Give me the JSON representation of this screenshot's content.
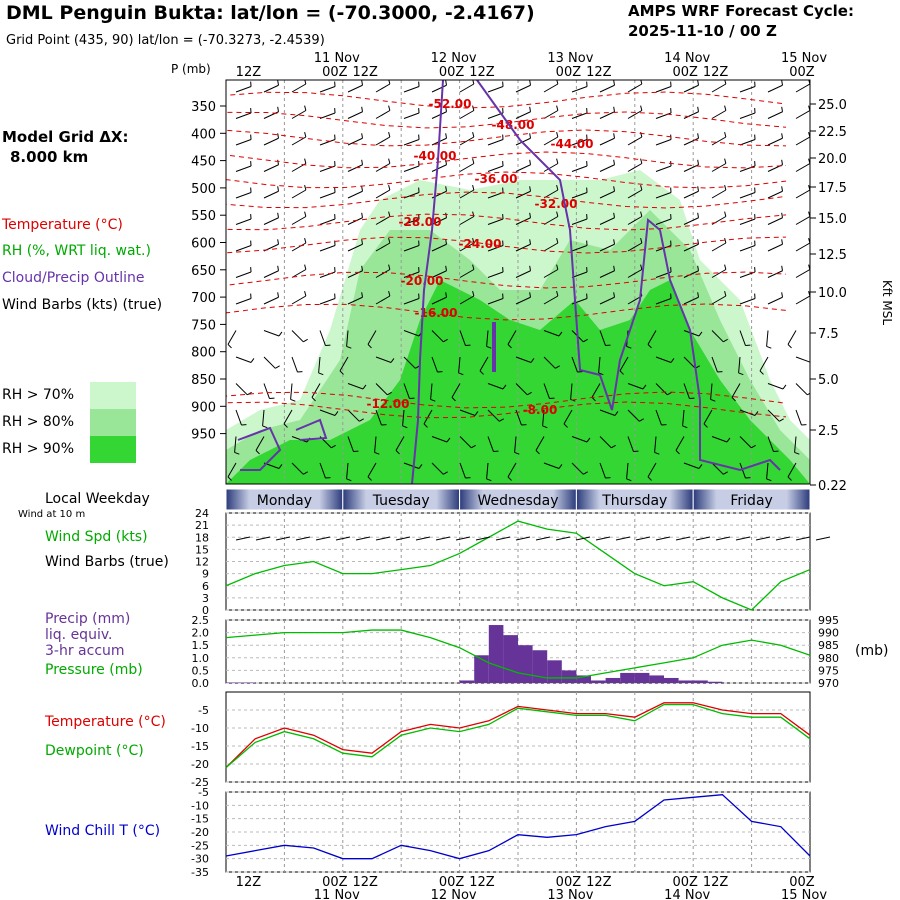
{
  "header": {
    "title": "DML Penguin Bukta:  lat/lon = (-70.3000, -2.4167)",
    "subtitle": "Grid Point (435, 90) lat/lon = (-70.3273, -2.4539)",
    "cycle_line1": "AMPS WRF Forecast Cycle:",
    "cycle_line2": "2025-11-10 / 00  Z"
  },
  "left_panel": {
    "grid_label": "Model Grid ΔX:",
    "grid_value": "8.000 km",
    "legend_temperature": "Temperature (°C)",
    "legend_rh": "RH (%, WRT liq. wat.)",
    "legend_cloud": "Cloud/Precip Outline",
    "legend_wind": "Wind Barbs (kts) (true)",
    "rh70": "RH > 70%",
    "rh80": "RH > 80%",
    "rh90": "RH > 90%",
    "p_unit": "P (mb)",
    "kft": "Kft MSL",
    "local_weekday": "Local Weekday",
    "wind_at": "Wind at 10 m",
    "wspd_label": "Wind Spd (kts)",
    "wbarb_label": "Wind Barbs (true)",
    "precip_label1": "Precip (mm)",
    "precip_label2": "liq. equiv.",
    "precip_label3": "3-hr accum",
    "pressure_label": "Pressure (mb)",
    "mb_label": "(mb)",
    "temp_label": "Temperature (°C)",
    "dew_label": "Dewpoint (°C)",
    "chill_label": "Wind Chill T (°C)"
  },
  "colors": {
    "rh70": "#ccf7cc",
    "rh80": "#99e699",
    "rh90": "#33d633",
    "temperature": "#dd0000",
    "dewpoint": "#00bb00",
    "cloud": "#6633aa",
    "wind_chill": "#0000cc",
    "precip": "#663399",
    "day_bar": "#7d8bbd"
  },
  "time_axis": {
    "top_dates": [
      "11 Nov",
      "12 Nov",
      "13 Nov",
      "14 Nov",
      "15 Nov"
    ],
    "hour_labels": [
      "12Z",
      "00Z",
      "12Z",
      "00Z",
      "12Z",
      "00Z",
      "12Z",
      "00Z",
      "12Z",
      "00Z"
    ],
    "bottom_dates": [
      "11 Nov",
      "12 Nov",
      "13 Nov",
      "14 Nov",
      "15 Nov"
    ],
    "days": [
      "Monday",
      "Tuesday",
      "Wednesday",
      "Thursday",
      "Friday"
    ]
  },
  "chart_data": [
    {
      "type": "heatmap",
      "title": "Time-height cross section",
      "ylabel": "P (mb)",
      "y2label": "Kft MSL",
      "pressure_ticks": [
        "350",
        "400",
        "450",
        "500",
        "550",
        "600",
        "650",
        "700",
        "750",
        "800",
        "850",
        "900",
        "950"
      ],
      "height_ticks": [
        "25.0",
        "22.5",
        "20.0",
        "17.5",
        "15.0",
        "12.5",
        "10.0",
        "7.5",
        "5.0",
        "2.5",
        "0.22"
      ],
      "temperature_contour_labels": [
        "-52.00",
        "-48.00",
        "-44.00",
        "-40.00",
        "-36.00",
        "-32.00",
        "-28.00",
        "-24.00",
        "-20.00",
        "-16.00",
        "-12.00",
        "-8.00"
      ]
    },
    {
      "type": "line",
      "title": "Wind Spd (kts)",
      "y_ticks": [
        "0",
        "3",
        "6",
        "9",
        "12",
        "15",
        "18",
        "21",
        "24"
      ],
      "ylim": [
        0,
        24
      ],
      "x_hours": [
        0,
        6,
        12,
        18,
        24,
        30,
        36,
        42,
        48,
        54,
        60,
        66,
        72,
        78,
        84,
        90,
        96,
        102,
        108,
        114,
        120
      ],
      "series": [
        {
          "name": "Wind Spd (kts)",
          "values": [
            6,
            9,
            11,
            12,
            9,
            9,
            10,
            11,
            14,
            18,
            22,
            20,
            19,
            14,
            9,
            6,
            7,
            3,
            0,
            7,
            10
          ]
        }
      ]
    },
    {
      "type": "bar",
      "title": "Precip (mm) / Pressure (mb)",
      "y_ticks": [
        "0.0",
        "0.5",
        "1.0",
        "1.5",
        "2.0",
        "2.5"
      ],
      "y2_ticks": [
        "970",
        "975",
        "980",
        "985",
        "990",
        "995"
      ],
      "ylim": [
        0,
        2.5
      ],
      "y2lim": [
        970,
        995
      ],
      "bar_hours": [
        3,
        6,
        51,
        54,
        57,
        60,
        63,
        66,
        69,
        72,
        75,
        78,
        81,
        84,
        87,
        90,
        93,
        96,
        99,
        102
      ],
      "precip_values": [
        0.02,
        0.02,
        0.1,
        1.1,
        2.3,
        1.9,
        1.5,
        1.3,
        0.9,
        0.5,
        0.3,
        0.1,
        0.2,
        0.4,
        0.4,
        0.3,
        0.2,
        0.1,
        0.1,
        0.05
      ],
      "pressure_hours": [
        0,
        6,
        12,
        18,
        24,
        30,
        36,
        42,
        48,
        54,
        60,
        66,
        72,
        78,
        84,
        90,
        96,
        102,
        108,
        114,
        120
      ],
      "pressure_values": [
        988,
        989,
        990,
        990,
        990,
        991,
        991,
        988,
        984,
        978,
        974,
        972,
        972,
        974,
        976,
        978,
        980,
        985,
        987,
        985,
        981
      ]
    },
    {
      "type": "line",
      "title": "Temperature / Dewpoint (°C)",
      "y_ticks": [
        "-25",
        "-20",
        "-15",
        "-10",
        "-5"
      ],
      "ylim": [
        -25,
        0
      ],
      "x_hours": [
        0,
        6,
        12,
        18,
        24,
        30,
        36,
        42,
        48,
        54,
        60,
        66,
        72,
        78,
        84,
        90,
        96,
        102,
        108,
        114,
        120
      ],
      "series": [
        {
          "name": "Temperature (°C)",
          "values": [
            -21,
            -13,
            -10,
            -12,
            -16,
            -17,
            -11,
            -9,
            -10,
            -8,
            -4,
            -5,
            -6,
            -6,
            -7,
            -3,
            -3,
            -5,
            -6,
            -6,
            -12
          ]
        },
        {
          "name": "Dewpoint (°C)",
          "values": [
            -21,
            -14,
            -11,
            -13,
            -17,
            -18,
            -12,
            -10,
            -11,
            -9,
            -4.5,
            -5.5,
            -6.5,
            -6.5,
            -8,
            -3.5,
            -3.5,
            -6,
            -7,
            -7,
            -13
          ]
        }
      ]
    },
    {
      "type": "line",
      "title": "Wind Chill T (°C)",
      "y_ticks": [
        "-35",
        "-30",
        "-25",
        "-20",
        "-15",
        "-10",
        "-5"
      ],
      "ylim": [
        -35,
        -5
      ],
      "x_hours": [
        0,
        6,
        12,
        18,
        24,
        30,
        36,
        42,
        48,
        54,
        60,
        66,
        72,
        78,
        84,
        90,
        96,
        102,
        108,
        114,
        120
      ],
      "series": [
        {
          "name": "Wind Chill T (°C)",
          "values": [
            -29,
            -27,
            -25,
            -26,
            -30,
            -30,
            -25,
            -27,
            -30,
            -27,
            -21,
            -22,
            -21,
            -18,
            -16,
            -8,
            -7,
            -6,
            -16,
            -18,
            -29
          ]
        }
      ]
    }
  ]
}
